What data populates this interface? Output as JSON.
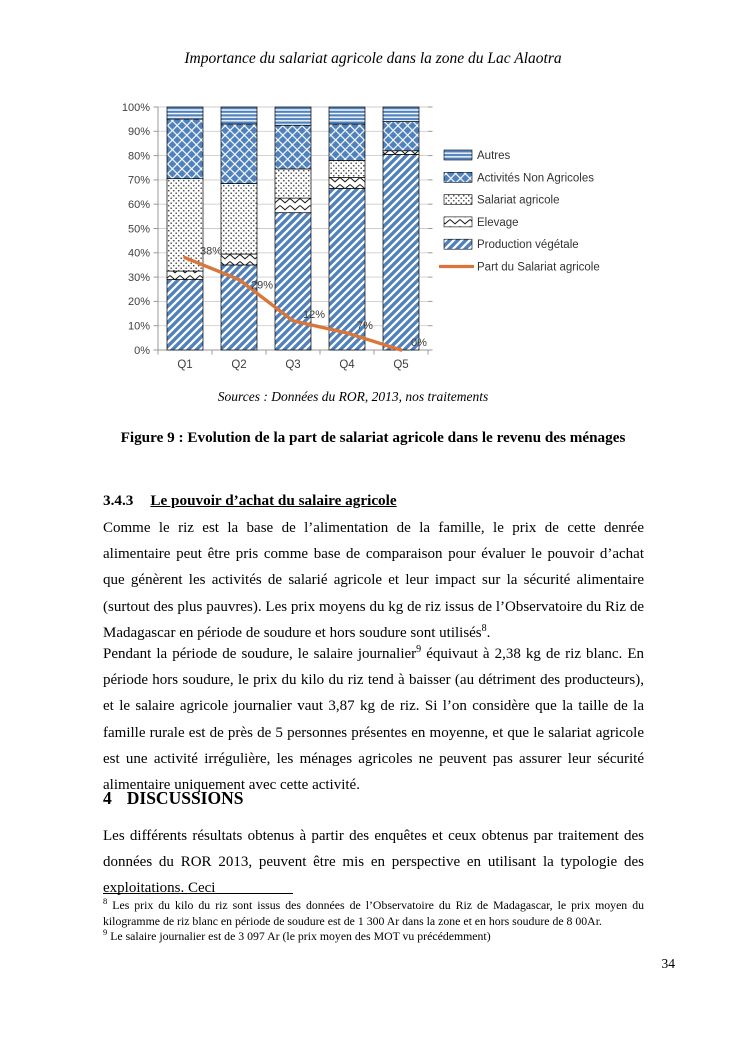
{
  "header": {
    "text": "Importance du salariat agricole dans la zone du Lac Alaotra"
  },
  "chart_data": {
    "type": "bar",
    "stacked": true,
    "categories": [
      "Q1",
      "Q2",
      "Q3",
      "Q4",
      "Q5"
    ],
    "series": [
      {
        "name": "Production végétale",
        "pattern": "diag",
        "values": [
          29,
          35,
          56.5,
          66.5,
          80.5
        ]
      },
      {
        "name": "Elevage",
        "pattern": "zigzag",
        "values": [
          3.5,
          4.5,
          6,
          4.5,
          1.5
        ]
      },
      {
        "name": "Salariat agricole",
        "pattern": "dots",
        "values": [
          38,
          29,
          12,
          7,
          0
        ]
      },
      {
        "name": "Activités Non Agricoles",
        "pattern": "diamonds",
        "values": [
          24.5,
          24.5,
          18,
          15,
          12
        ]
      },
      {
        "name": "Autres",
        "pattern": "hlines",
        "values": [
          5,
          7,
          7.5,
          7,
          6
        ]
      }
    ],
    "line": {
      "name": "Part du Salariat agricole",
      "values": [
        38,
        29,
        12,
        7,
        0
      ],
      "labels": [
        "38%",
        "29%",
        "12%",
        "7%",
        "0%"
      ],
      "color": "#D9773B"
    },
    "title": "",
    "xlabel": "",
    "ylabel": "",
    "ylim": [
      0,
      100
    ],
    "y_ticks": [
      "0%",
      "10%",
      "20%",
      "30%",
      "40%",
      "50%",
      "60%",
      "70%",
      "80%",
      "90%",
      "100%"
    ],
    "grid": true,
    "legend_position": "right",
    "legend": [
      "Autres",
      "Activités Non Agricoles",
      "Salariat agricole",
      "Elevage",
      "Production végétale",
      "Part du Salariat agricole"
    ],
    "bar_color": "#4F81BD",
    "axis_text_color": "#3F3F3F",
    "gridline_color": "#CDCDCD"
  },
  "figure": {
    "source_note": "Sources : Données du ROR, 2013, nos traitements",
    "caption": "Figure 9 : Evolution de la part de salariat agricole dans le revenu des ménages"
  },
  "section_343": {
    "number": "3.4.3",
    "title": "Le pouvoir d’achat du salaire agricole"
  },
  "paragraph_1": {
    "text_before_sup": "Comme le riz est la base de l’alimentation de la famille, le prix de cette denrée alimentaire peut être pris comme base de comparaison pour évaluer le pouvoir d’achat que génèrent les activités de salarié agricole et leur impact sur la sécurité alimentaire (surtout des plus pauvres). Les prix moyens du kg de riz issus de l’Observatoire du Riz de Madagascar en période de soudure et hors soudure sont utilisés",
    "sup": "8",
    "text_after_sup": "."
  },
  "paragraph_2": {
    "text_before_sup": "Pendant la période de soudure, le salaire journalier",
    "sup": "9",
    "text_after_sup": " équivaut à 2,38 kg de riz blanc. En période hors soudure, le prix du kilo du riz tend à baisser (au détriment des producteurs), et le salaire agricole journalier vaut 3,87 kg de riz. Si l’on considère que la taille de la famille rurale est de près de 5 personnes présentes en moyenne, et que le salariat agricole est une activité irrégulière, les ménages agricoles ne peuvent pas assurer leur sécurité alimentaire uniquement avec cette activité."
  },
  "section_4": {
    "number": "4",
    "title": "DISCUSSIONS"
  },
  "paragraph_3": {
    "text": "Les différents résultats obtenus à partir des enquêtes et ceux obtenus par traitement des données du ROR 2013, peuvent être mis en perspective en utilisant la typologie des exploitations. Ceci"
  },
  "footnotes": [
    {
      "marker": "8",
      "text": "Les prix du kilo du riz sont issus des données de l’Observatoire du Riz de Madagascar, le prix moyen du kilogramme de riz blanc en période de soudure est de 1 300 Ar dans la zone et en hors soudure de 8 00Ar."
    },
    {
      "marker": "9",
      "text": "Le salaire journalier est de 3 097 Ar (le prix moyen des MOT vu précédemment)"
    }
  ],
  "page_number": "34"
}
